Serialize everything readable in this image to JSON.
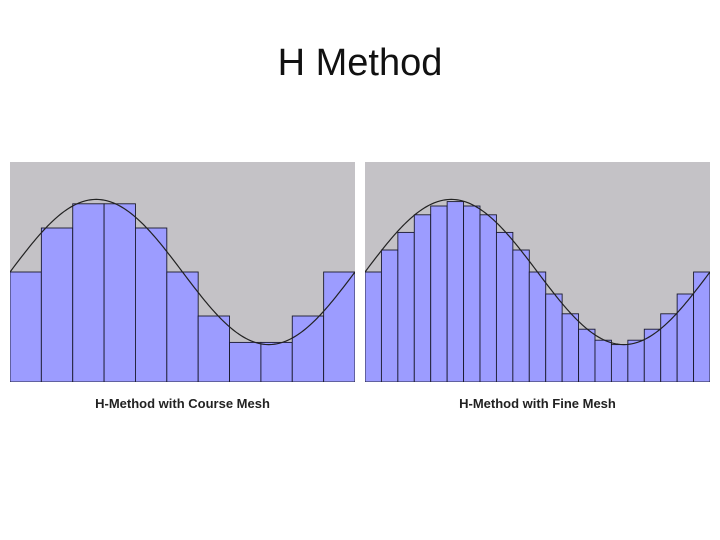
{
  "slide": {
    "title": "H Method"
  },
  "colors": {
    "background": "#c4c2c6",
    "bar_fill": "#9c9cff",
    "bar_stroke": "#1a1a2e",
    "curve": "#222222"
  },
  "panels": [
    {
      "id": "coarse",
      "caption": "H-Method with Course Mesh",
      "element_count": 11
    },
    {
      "id": "fine",
      "caption": "H-Method with Fine Mesh",
      "element_count": 21
    }
  ],
  "chart_data": [
    {
      "type": "bar",
      "title": "H-Method with Course Mesh",
      "curve": "sine wave, one full period plus",
      "values": [
        0.5,
        0.7,
        0.81,
        0.81,
        0.7,
        0.5,
        0.3,
        0.18,
        0.18,
        0.3,
        0.5
      ]
    },
    {
      "type": "bar",
      "title": "H-Method with Fine Mesh",
      "curve": "sine wave, one full period plus",
      "values": [
        0.5,
        0.6,
        0.68,
        0.76,
        0.8,
        0.82,
        0.8,
        0.76,
        0.68,
        0.6,
        0.5,
        0.4,
        0.31,
        0.24,
        0.19,
        0.17,
        0.19,
        0.24,
        0.31,
        0.4,
        0.5
      ]
    }
  ]
}
